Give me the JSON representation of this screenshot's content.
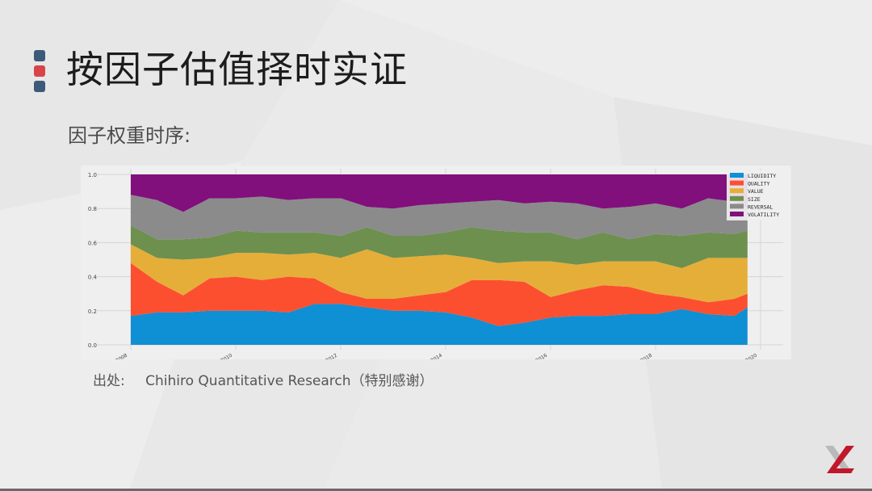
{
  "slide": {
    "title": "按因子估值择时实证",
    "subtitle": "因子权重时序:",
    "source_label": "出处:",
    "source_text": "Chihiro Quantitative Research（特别感谢）",
    "bullet_colors": [
      "#3d5a78",
      "#d94448",
      "#3d5a78"
    ]
  },
  "chart_data": {
    "type": "area",
    "stacked": true,
    "title": "",
    "xlabel": "",
    "ylabel": "",
    "ylim": [
      0.0,
      1.0
    ],
    "xlim": [
      2008,
      2020
    ],
    "yticks": [
      "0.0",
      "0.2",
      "0.4",
      "0.6",
      "0.8",
      "1.0"
    ],
    "xticks": [
      "2008",
      "2010",
      "2012",
      "2014",
      "2016",
      "2018",
      "2020"
    ],
    "grid": true,
    "legend_position": "upper right",
    "x": [
      2008.0,
      2008.5,
      2009.0,
      2009.5,
      2010.0,
      2010.5,
      2011.0,
      2011.5,
      2012.0,
      2012.5,
      2013.0,
      2013.5,
      2014.0,
      2014.5,
      2015.0,
      2015.5,
      2016.0,
      2016.5,
      2017.0,
      2017.5,
      2018.0,
      2018.5,
      2019.0,
      2019.5,
      2019.75
    ],
    "series": [
      {
        "name": "LIQUIDITY",
        "color": "#0f8fd4",
        "values": [
          0.17,
          0.19,
          0.19,
          0.2,
          0.2,
          0.2,
          0.19,
          0.24,
          0.24,
          0.22,
          0.2,
          0.2,
          0.19,
          0.16,
          0.11,
          0.13,
          0.16,
          0.17,
          0.17,
          0.18,
          0.18,
          0.21,
          0.18,
          0.17,
          0.22
        ]
      },
      {
        "name": "QUALITY",
        "color": "#fc4f30",
        "values": [
          0.31,
          0.18,
          0.1,
          0.19,
          0.2,
          0.18,
          0.21,
          0.15,
          0.07,
          0.05,
          0.07,
          0.09,
          0.12,
          0.22,
          0.27,
          0.24,
          0.12,
          0.15,
          0.18,
          0.16,
          0.12,
          0.07,
          0.07,
          0.1,
          0.08
        ]
      },
      {
        "name": "VALUE",
        "color": "#e5ae38",
        "values": [
          0.11,
          0.14,
          0.21,
          0.12,
          0.14,
          0.16,
          0.13,
          0.15,
          0.2,
          0.29,
          0.24,
          0.23,
          0.22,
          0.13,
          0.1,
          0.12,
          0.21,
          0.15,
          0.14,
          0.15,
          0.19,
          0.17,
          0.26,
          0.24,
          0.21
        ]
      },
      {
        "name": "SIZE",
        "color": "#6d904f",
        "values": [
          0.11,
          0.11,
          0.12,
          0.12,
          0.13,
          0.12,
          0.13,
          0.12,
          0.13,
          0.13,
          0.13,
          0.12,
          0.13,
          0.18,
          0.19,
          0.17,
          0.17,
          0.15,
          0.17,
          0.13,
          0.16,
          0.19,
          0.15,
          0.14,
          0.16
        ]
      },
      {
        "name": "REVERSAL",
        "color": "#8b8b8b",
        "values": [
          0.18,
          0.23,
          0.16,
          0.23,
          0.19,
          0.21,
          0.19,
          0.2,
          0.22,
          0.12,
          0.16,
          0.18,
          0.17,
          0.15,
          0.18,
          0.17,
          0.18,
          0.21,
          0.14,
          0.19,
          0.18,
          0.16,
          0.2,
          0.19,
          0.13
        ]
      },
      {
        "name": "VOLATILITY",
        "color": "#810f7c",
        "values": [
          0.12,
          0.15,
          0.22,
          0.14,
          0.14,
          0.13,
          0.15,
          0.14,
          0.14,
          0.19,
          0.2,
          0.18,
          0.17,
          0.16,
          0.15,
          0.17,
          0.16,
          0.17,
          0.2,
          0.19,
          0.17,
          0.2,
          0.14,
          0.16,
          0.2
        ]
      }
    ]
  }
}
